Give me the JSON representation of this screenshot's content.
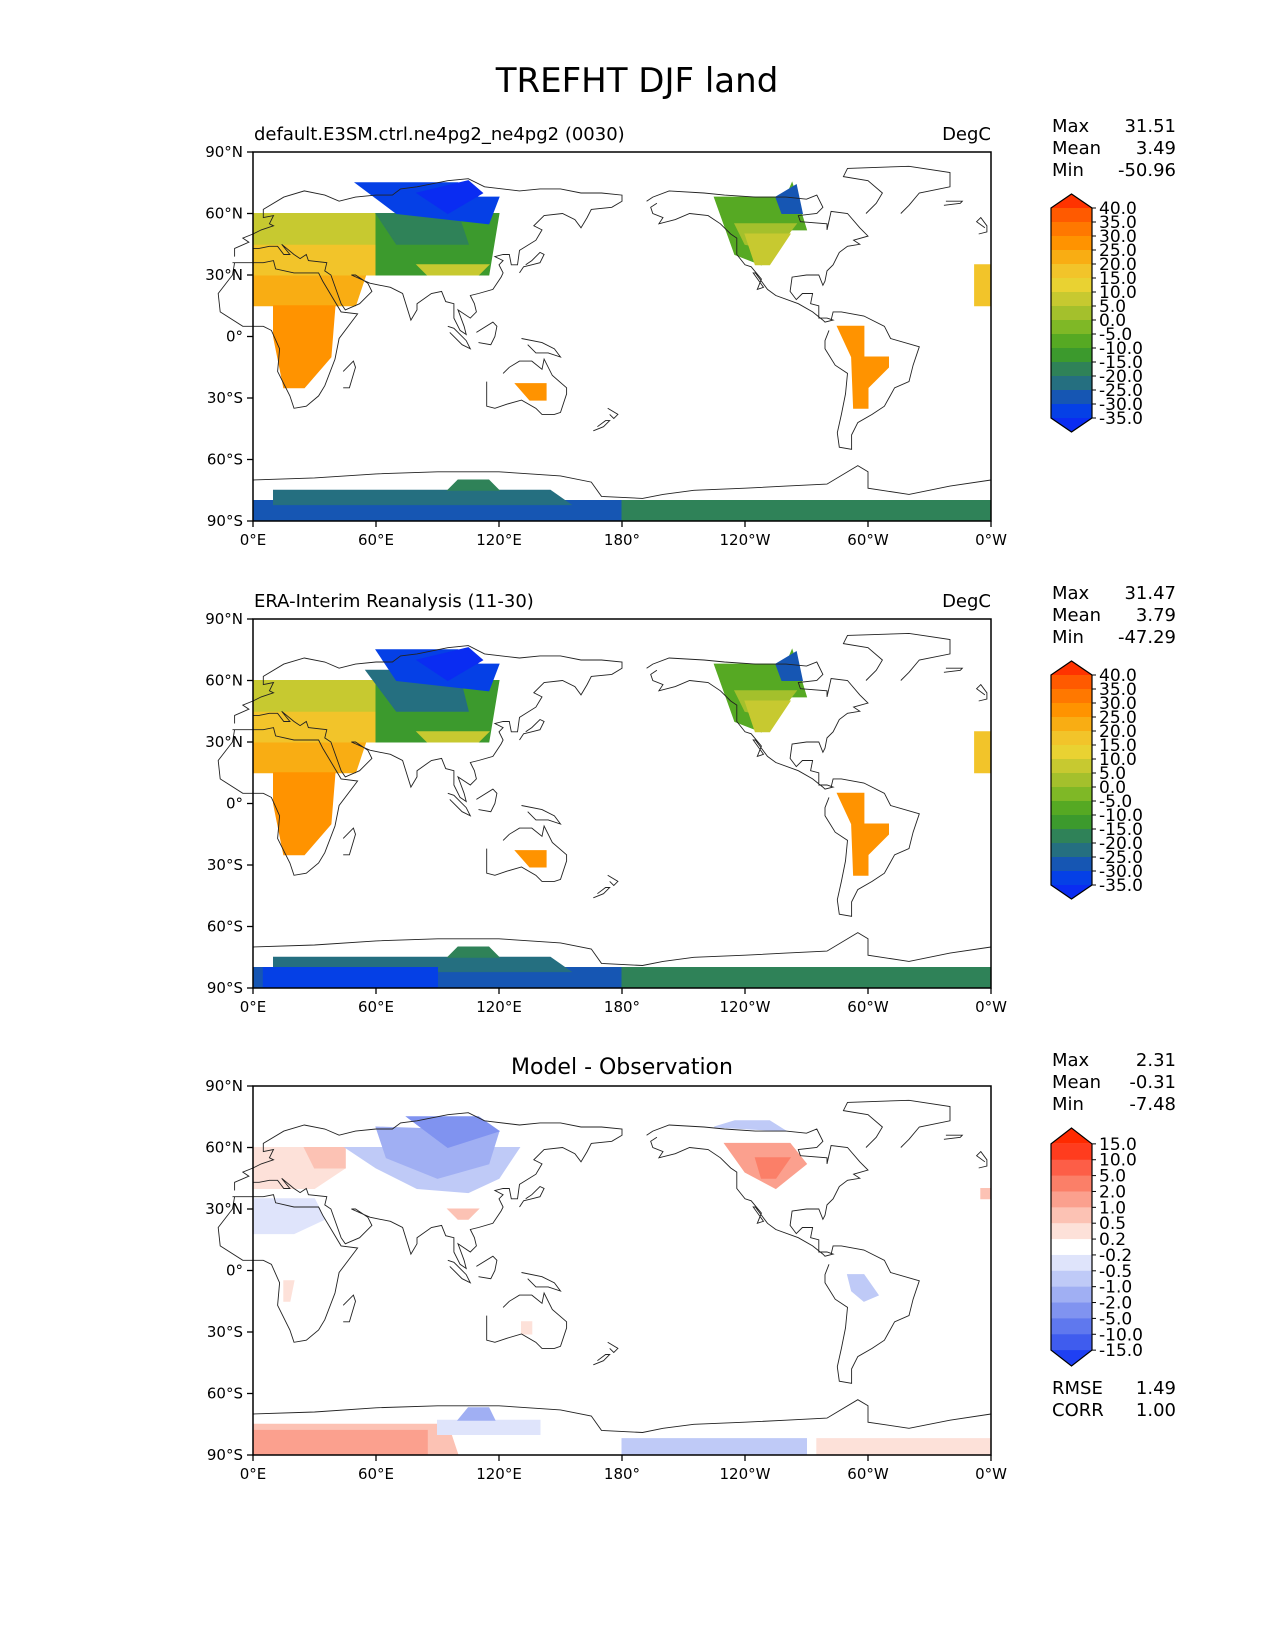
{
  "title": "TREFHT DJF land",
  "lat_labels": [
    "90°N",
    "60°N",
    "30°N",
    "0°",
    "30°S",
    "60°S",
    "90°S"
  ],
  "lon_labels": [
    "0°E",
    "60°E",
    "120°E",
    "180°",
    "120°W",
    "60°W",
    "0°W"
  ],
  "panels": [
    {
      "key": "test",
      "left_title": "default.E3SM.ctrl.ne4pg2_ne4pg2 (0030)",
      "center_title": "",
      "right_title": "DegC",
      "stats": [
        [
          "Max",
          "31.51"
        ],
        [
          "Mean",
          "3.49"
        ],
        [
          "Min",
          "-50.96"
        ]
      ],
      "colorbar_labels": [
        "40.0",
        "35.0",
        "30.0",
        "25.0",
        "20.0",
        "15.0",
        "10.0",
        "5.0",
        "0.0",
        "-5.0",
        "-10.0",
        "-15.0",
        "-20.0",
        "-25.0",
        "-30.0",
        "-35.0"
      ],
      "colorbar_colors": [
        "#ff3300",
        "#ff5a00",
        "#ff7800",
        "#ff9300",
        "#f9ad13",
        "#f2c42a",
        "#e9d232",
        "#c7c930",
        "#a4c02c",
        "#7fb826",
        "#56a923",
        "#3c9a2d",
        "#2f8258",
        "#256f80",
        "#1656b3",
        "#0540e6",
        "#0a2cf2"
      ]
    },
    {
      "key": "reference",
      "left_title": "ERA-Interim Reanalysis (11-30)",
      "center_title": "",
      "right_title": "DegC",
      "stats": [
        [
          "Max",
          "31.47"
        ],
        [
          "Mean",
          "3.79"
        ],
        [
          "Min",
          "-47.29"
        ]
      ],
      "colorbar_labels": [
        "40.0",
        "35.0",
        "30.0",
        "25.0",
        "20.0",
        "15.0",
        "10.0",
        "5.0",
        "0.0",
        "-5.0",
        "-10.0",
        "-15.0",
        "-20.0",
        "-25.0",
        "-30.0",
        "-35.0"
      ],
      "colorbar_colors": [
        "#ff3300",
        "#ff5a00",
        "#ff7800",
        "#ff9300",
        "#f9ad13",
        "#f2c42a",
        "#e9d232",
        "#c7c930",
        "#a4c02c",
        "#7fb826",
        "#56a923",
        "#3c9a2d",
        "#2f8258",
        "#256f80",
        "#1656b3",
        "#0540e6",
        "#0a2cf2"
      ]
    },
    {
      "key": "difference",
      "left_title": "",
      "center_title": "Model - Observation",
      "right_title": "",
      "stats": [
        [
          "Max",
          "2.31"
        ],
        [
          "Mean",
          "-0.31"
        ],
        [
          "Min",
          "-7.48"
        ]
      ],
      "extra_stats": [
        [
          "RMSE",
          "1.49"
        ],
        [
          "CORR",
          "1.00"
        ]
      ],
      "colorbar_labels": [
        "15.0",
        "10.0",
        "5.0",
        "2.0",
        "1.0",
        "0.5",
        "0.2",
        "-0.2",
        "-0.5",
        "-1.0",
        "-2.0",
        "-5.0",
        "-10.0",
        "-15.0"
      ],
      "colorbar_colors": [
        "#ff2a00",
        "#ff3c1e",
        "#fd5e47",
        "#fb7f68",
        "#fba08e",
        "#fcc2b4",
        "#fde1d9",
        "#ffffff",
        "#dfe4fb",
        "#bfcaf7",
        "#a0aff3",
        "#8093f0",
        "#5f78ee",
        "#3f5cee",
        "#1f40f3"
      ]
    }
  ],
  "chart_data": {
    "type": "heatmap",
    "variable": "TREFHT",
    "season": "DJF",
    "units": "DegC",
    "projection": "PlateCarree",
    "xlim": [
      0,
      360
    ],
    "ylim": [
      -90,
      90
    ],
    "panels": [
      "test",
      "reference",
      "difference"
    ]
  }
}
